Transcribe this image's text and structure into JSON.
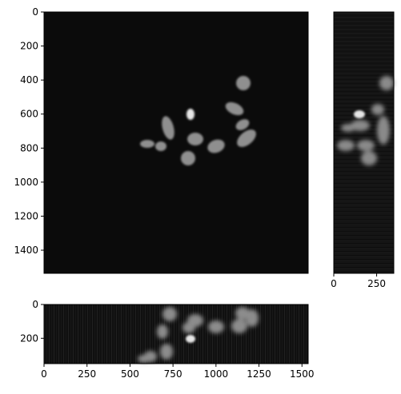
{
  "chart_data": [
    {
      "type": "image",
      "view": "xy",
      "xlim": [
        0,
        1536
      ],
      "ylim": [
        1536,
        0
      ],
      "x_ticks_visible": false,
      "y_ticks": [
        0,
        200,
        400,
        600,
        800,
        1000,
        1200,
        1400
      ],
      "y_tick_labels": [
        "0",
        "200",
        "400",
        "600",
        "800",
        "1000",
        "1200",
        "1400"
      ],
      "xlabel": "",
      "ylabel": "",
      "title": ""
    },
    {
      "type": "image",
      "view": "zy",
      "xlim": [
        0,
        350
      ],
      "ylim": [
        1536,
        0
      ],
      "x_ticks": [
        0,
        250
      ],
      "x_tick_labels": [
        "0",
        "250"
      ],
      "y_ticks_visible": false,
      "xlabel": "",
      "ylabel": "",
      "title": ""
    },
    {
      "type": "image",
      "view": "xz",
      "xlim": [
        0,
        1536
      ],
      "ylim": [
        350,
        0
      ],
      "x_ticks": [
        0,
        250,
        500,
        750,
        1000,
        1250,
        1500
      ],
      "x_tick_labels": [
        "0",
        "250",
        "500",
        "750",
        "1000",
        "1250",
        "1500"
      ],
      "y_ticks": [
        0,
        200
      ],
      "y_tick_labels": [
        "0",
        "200"
      ],
      "xlabel": "",
      "ylabel": "",
      "title": ""
    }
  ],
  "colors": {
    "background": "#0b0b0b",
    "nucleus": "#9a9a9a",
    "axis": "#000000"
  }
}
